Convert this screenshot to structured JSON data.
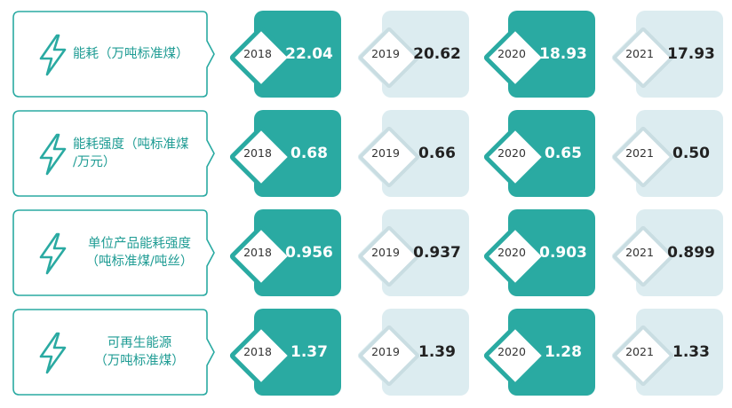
{
  "colors": {
    "teal": "#2aaaa2",
    "light_card": "#dcecf0",
    "label_text": "#1f9c94"
  },
  "icon": "lightning-bolt-icon",
  "rows": [
    {
      "label_lines": [
        "能耗（万吨标准煤）"
      ],
      "entries": [
        {
          "year": "2018",
          "value": "22.04"
        },
        {
          "year": "2019",
          "value": "20.62"
        },
        {
          "year": "2020",
          "value": "18.93"
        },
        {
          "year": "2021",
          "value": "17.93"
        }
      ]
    },
    {
      "label_lines": [
        "能耗强度（吨标准煤",
        "/万元）"
      ],
      "entries": [
        {
          "year": "2018",
          "value": "0.68"
        },
        {
          "year": "2019",
          "value": "0.66"
        },
        {
          "year": "2020",
          "value": "0.65"
        },
        {
          "year": "2021",
          "value": "0.50"
        }
      ]
    },
    {
      "label_lines": [
        "单位产品能耗强度",
        "（吨标准煤/吨丝）"
      ],
      "entries": [
        {
          "year": "2018",
          "value": "0.956"
        },
        {
          "year": "2019",
          "value": "0.937"
        },
        {
          "year": "2020",
          "value": "0.903"
        },
        {
          "year": "2021",
          "value": "0.899"
        }
      ]
    },
    {
      "label_lines": [
        "可再生能源",
        "（万吨标准煤）"
      ],
      "entries": [
        {
          "year": "2018",
          "value": "1.37"
        },
        {
          "year": "2019",
          "value": "1.39"
        },
        {
          "year": "2020",
          "value": "1.28"
        },
        {
          "year": "2021",
          "value": "1.33"
        }
      ]
    }
  ]
}
